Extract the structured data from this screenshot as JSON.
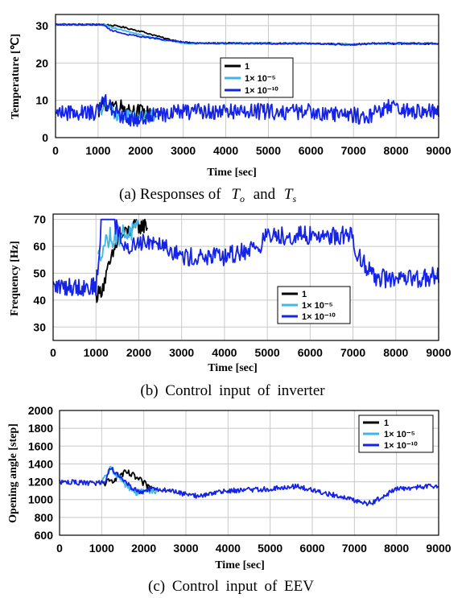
{
  "colors": {
    "s1": "#000000",
    "s2": "#3fb6ea",
    "s3": "#1523e6"
  },
  "chart_data": [
    {
      "type": "line",
      "caption": "(a) Responses of",
      "caption_vars": [
        "T",
        "o",
        "and",
        "T",
        "s"
      ],
      "xlabel": "Time [sec]",
      "ylabel": "Temperature [℃]",
      "xlim": [
        0,
        9000
      ],
      "ylim": [
        0,
        33
      ],
      "xticks": [
        0,
        1000,
        2000,
        3000,
        4000,
        5000,
        6000,
        7000,
        8000,
        9000
      ],
      "yticks": [
        0,
        10,
        20,
        30
      ],
      "grid": true,
      "legend_position": "center",
      "legend": [
        "1",
        "1× 10⁻⁵",
        "1× 10⁻¹⁰"
      ],
      "series": [
        {
          "name": "1",
          "color_key": "s1",
          "upper": {
            "x": [
              0,
              1000,
              1150,
              1500,
              2000,
              2300,
              2600,
              2900,
              3200,
              4000,
              6000,
              7000,
              7500,
              9000
            ],
            "y": [
              30.3,
              30.3,
              30.3,
              29.8,
              28.5,
              27.5,
              26.5,
              25.8,
              25.3,
              25.3,
              25.2,
              25.0,
              25.2,
              25.2
            ]
          },
          "lower_base": {
            "x": [
              0,
              1000,
              1150,
              1300,
              1500,
              1800,
              2000,
              2300,
              3000,
              9000
            ],
            "y": [
              7,
              7,
              9,
              9,
              8.5,
              7.5,
              7,
              6,
              7,
              7
            ]
          },
          "lower_range": [
            1000,
            2300
          ],
          "noise": 2.0
        },
        {
          "name": "1× 10⁻⁵",
          "color_key": "s2",
          "upper": {
            "x": [
              0,
              1000,
              1150,
              1400,
              2000,
              2600,
              3000,
              3200,
              4000,
              6000,
              7000,
              7500,
              9000
            ],
            "y": [
              30.3,
              30.3,
              30.2,
              29.3,
              27.5,
              26.0,
              25.4,
              25.3,
              25.3,
              25.2,
              25.0,
              25.2,
              25.2
            ]
          },
          "lower_base": {
            "x": [
              0,
              1000,
              1150,
              1300,
              1500,
              1800,
              2100,
              2400,
              3000,
              9000
            ],
            "y": [
              7,
              7,
              8,
              7,
              6,
              5.5,
              5.5,
              6,
              7,
              7
            ]
          },
          "lower_range": [
            1000,
            2400
          ],
          "noise": 1.8
        },
        {
          "name": "1× 10⁻¹⁰",
          "color_key": "s3",
          "upper": {
            "x": [
              0,
              1000,
              1150,
              1300,
              1700,
              2200,
              2700,
              3100,
              3400,
              4000,
              6000,
              7000,
              7500,
              9000
            ],
            "y": [
              30.3,
              30.3,
              30.1,
              28.8,
              27.6,
              26.8,
              26.0,
              25.5,
              25.3,
              25.3,
              25.2,
              24.9,
              25.3,
              25.2
            ]
          },
          "lower_base": {
            "x": [
              0,
              1000,
              1150,
              1300,
              1500,
              1800,
              2100,
              2400,
              3000,
              4000,
              5000,
              6000,
              7000,
              7300,
              7800,
              8200,
              9000
            ],
            "y": [
              6.8,
              6.8,
              10,
              8,
              6,
              4.5,
              5.5,
              6,
              7,
              7,
              7,
              7,
              6,
              5.5,
              8.5,
              7,
              6.8
            ]
          },
          "lower_range": [
            0,
            9000
          ],
          "noise": 2.2
        }
      ]
    },
    {
      "type": "line",
      "caption": "(b) Control input of inverter",
      "xlabel": "Time [sec]",
      "ylabel": "Frequency [Hz]",
      "xlim": [
        0,
        9000
      ],
      "ylim": [
        25,
        72
      ],
      "xticks": [
        0,
        1000,
        2000,
        3000,
        4000,
        5000,
        6000,
        7000,
        8000,
        9000
      ],
      "yticks": [
        30,
        40,
        50,
        60,
        70
      ],
      "grid": true,
      "legend_position": "bottom-right",
      "legend": [
        "1",
        "1× 10⁻⁵",
        "1× 10⁻¹⁰"
      ],
      "series": [
        {
          "name": "1",
          "color_key": "s1",
          "base": {
            "x": [
              1000,
              1100,
              1200,
              1300,
              1500,
              1700,
              1900,
              2200
            ],
            "y": [
              42,
              43,
              47,
              52,
              62,
              65,
              67,
              68
            ]
          },
          "range": [
            1000,
            2200
          ],
          "noise": 3.0,
          "cap": 70
        },
        {
          "name": "1× 10⁻⁵",
          "color_key": "s2",
          "base": {
            "x": [
              1050,
              1150,
              1300,
              1500,
              1700,
              2000
            ],
            "y": [
              55,
              60,
              63,
              64,
              65,
              66
            ]
          },
          "range": [
            1050,
            2000
          ],
          "noise": 4.0,
          "cap": 70
        },
        {
          "name": "1× 10⁻¹⁰",
          "color_key": "s3",
          "base": {
            "x": [
              0,
              500,
              1000,
              1100,
              1500,
              1650,
              2000,
              2500,
              3000,
              4000,
              4800,
              5000,
              6000,
              7000,
              7100,
              7500,
              8000,
              9000
            ],
            "y": [
              45,
              45,
              45,
              62,
              68,
              58,
              62,
              62,
              56,
              56,
              60,
              64,
              64,
              64,
              57,
              49,
              47,
              49
            ]
          },
          "flat": [
            1120,
            1450,
            70
          ],
          "range": [
            0,
            9000
          ],
          "noise": 3.5,
          "cap": 70
        }
      ]
    },
    {
      "type": "line",
      "caption": "(c) Control input of EEV",
      "xlabel": "Time [sec]",
      "ylabel": "Opening angle [step]",
      "xlim": [
        0,
        9000
      ],
      "ylim": [
        600,
        2000
      ],
      "xticks": [
        0,
        1000,
        2000,
        3000,
        4000,
        5000,
        6000,
        7000,
        8000,
        9000
      ],
      "yticks": [
        600,
        800,
        1000,
        1200,
        1400,
        1600,
        1800,
        2000
      ],
      "grid": true,
      "legend_position": "top-right",
      "legend": [
        "1",
        "1× 10⁻⁵",
        "1× 10⁻¹⁰"
      ],
      "series": [
        {
          "name": "1",
          "color_key": "s1",
          "base": {
            "x": [
              1000,
              1200,
              1400,
              1600,
              1800,
              2000,
              2200
            ],
            "y": [
              1180,
              1200,
              1270,
              1300,
              1250,
              1180,
              1120
            ]
          },
          "range": [
            1000,
            2200
          ],
          "noise": 40
        },
        {
          "name": "1× 10⁻⁵",
          "color_key": "s2",
          "base": {
            "x": [
              1000,
              1200,
              1400,
              1600,
              1800,
              2000,
              2300
            ],
            "y": [
              1190,
              1350,
              1260,
              1150,
              1080,
              1090,
              1100
            ]
          },
          "range": [
            1000,
            2300
          ],
          "noise": 35
        },
        {
          "name": "1× 10⁻¹⁰",
          "color_key": "s3",
          "base": {
            "x": [
              0,
              900,
              1100,
              1200,
              1300,
              1500,
              1700,
              1900,
              2200,
              2600,
              3000,
              3300,
              4000,
              5000,
              5600,
              6000,
              6800,
              7200,
              7400,
              7700,
              8000,
              9000
            ],
            "y": [
              1200,
              1180,
              1220,
              1360,
              1320,
              1230,
              1140,
              1080,
              1120,
              1100,
              1060,
              1040,
              1100,
              1120,
              1150,
              1110,
              1020,
              960,
              960,
              1040,
              1120,
              1160
            ]
          },
          "range": [
            0,
            9000
          ],
          "noise": 28
        }
      ]
    }
  ]
}
